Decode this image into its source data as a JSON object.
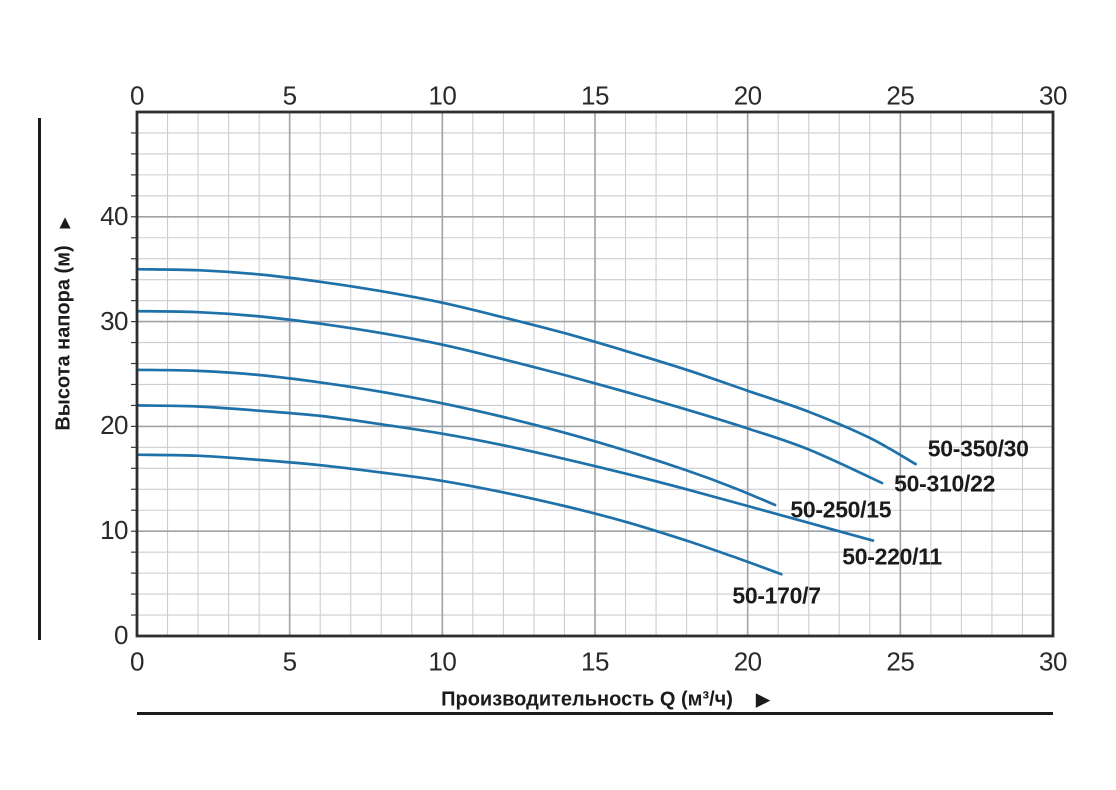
{
  "icons": {
    "up_arrow": "▲",
    "right_arrow": "▶"
  },
  "chart_data": {
    "type": "line",
    "title": "",
    "x_axis": {
      "label": "Производительность Q (м³/ч)",
      "range": [
        0,
        30
      ],
      "ticks": [
        0,
        5,
        10,
        15,
        20,
        25,
        30
      ],
      "minor_step": 1,
      "major_step": 5,
      "tick_label_rows": [
        "top",
        "bottom"
      ]
    },
    "y_axis": {
      "label": "Высота напора (м)",
      "range": [
        0,
        50
      ],
      "ticks": [
        0,
        10,
        20,
        30,
        40
      ],
      "minor_step": 2,
      "major_step": 10
    },
    "grid": "on",
    "legend_position": "inline-labels-at-curve-ends",
    "series": [
      {
        "name": "50-350/30",
        "points": [
          [
            0,
            35
          ],
          [
            2,
            34.9
          ],
          [
            4,
            34.5
          ],
          [
            6,
            33.8
          ],
          [
            8,
            32.9
          ],
          [
            10,
            31.8
          ],
          [
            12,
            30.4
          ],
          [
            14,
            28.9
          ],
          [
            16,
            27.2
          ],
          [
            18,
            25.4
          ],
          [
            20,
            23.4
          ],
          [
            22,
            21.4
          ],
          [
            24,
            18.9
          ],
          [
            25.5,
            16.4
          ]
        ],
        "label_anchor": [
          25.8,
          17.8
        ]
      },
      {
        "name": "50-310/22",
        "points": [
          [
            0,
            31
          ],
          [
            2,
            30.9
          ],
          [
            4,
            30.5
          ],
          [
            6,
            29.8
          ],
          [
            8,
            28.9
          ],
          [
            10,
            27.8
          ],
          [
            12,
            26.4
          ],
          [
            14,
            24.9
          ],
          [
            16,
            23.3
          ],
          [
            18,
            21.6
          ],
          [
            20,
            19.8
          ],
          [
            22,
            17.8
          ],
          [
            24.4,
            14.6
          ]
        ],
        "label_anchor": [
          24.7,
          14.5
        ]
      },
      {
        "name": "50-250/15",
        "points": [
          [
            0,
            25.4
          ],
          [
            2,
            25.3
          ],
          [
            4,
            24.9
          ],
          [
            6,
            24.2
          ],
          [
            8,
            23.3
          ],
          [
            10,
            22.2
          ],
          [
            12,
            20.9
          ],
          [
            14,
            19.4
          ],
          [
            16,
            17.7
          ],
          [
            18,
            15.8
          ],
          [
            19.5,
            14.2
          ],
          [
            20.9,
            12.5
          ]
        ],
        "label_anchor": [
          21.3,
          12.0
        ]
      },
      {
        "name": "50-220/11",
        "points": [
          [
            0,
            22
          ],
          [
            2,
            21.9
          ],
          [
            4,
            21.5
          ],
          [
            6,
            21
          ],
          [
            8,
            20.2
          ],
          [
            10,
            19.3
          ],
          [
            12,
            18.2
          ],
          [
            14,
            16.9
          ],
          [
            16,
            15.5
          ],
          [
            18,
            14
          ],
          [
            20,
            12.4
          ],
          [
            22,
            10.8
          ],
          [
            24.1,
            9.1
          ]
        ],
        "label_anchor": [
          23.0,
          7.5
        ]
      },
      {
        "name": "50-170/7",
        "points": [
          [
            0,
            17.3
          ],
          [
            2,
            17.2
          ],
          [
            4,
            16.8
          ],
          [
            6,
            16.3
          ],
          [
            8,
            15.6
          ],
          [
            10,
            14.8
          ],
          [
            12,
            13.7
          ],
          [
            14,
            12.4
          ],
          [
            16,
            10.9
          ],
          [
            18,
            9.1
          ],
          [
            19.5,
            7.6
          ],
          [
            21.1,
            5.9
          ]
        ],
        "label_anchor": [
          19.4,
          3.8
        ]
      }
    ],
    "colors": {
      "curve": "#1f71a9",
      "grid_minor": "#cbced1",
      "grid_major": "#9fa3a6",
      "border": "#2e2e2e",
      "text": "#2a2a2a"
    }
  }
}
